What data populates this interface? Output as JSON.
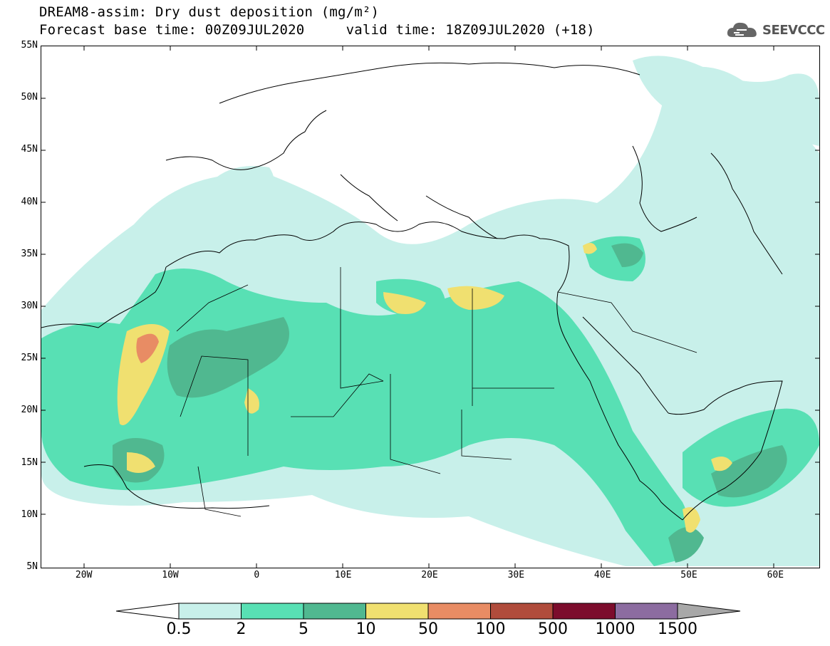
{
  "title": {
    "line1": "DREAM8-assim: Dry dust deposition (mg/m²)",
    "line2": "Forecast base time: 00Z09JUL2020     valid time: 18Z09JUL2020 (+18)"
  },
  "logo": {
    "text": "SEEVCCC",
    "icon": "cloud-icon"
  },
  "map": {
    "lon_range": [
      -25,
      65
    ],
    "lat_range": [
      5,
      55
    ],
    "y_ticks": [
      "55N",
      "50N",
      "45N",
      "40N",
      "35N",
      "30N",
      "25N",
      "20N",
      "15N",
      "10N",
      "5N"
    ],
    "x_ticks": [
      "20W",
      "10W",
      "0",
      "10E",
      "20E",
      "30E",
      "40E",
      "50E",
      "60E"
    ]
  },
  "legend": {
    "labels": [
      "0.5",
      "2",
      "5",
      "10",
      "50",
      "100",
      "500",
      "1000",
      "1500"
    ],
    "colors": [
      "#c8f0ea",
      "#58e0b4",
      "#50b890",
      "#f0e070",
      "#e88c64",
      "#b04c3c",
      "#7c0c2c",
      "#8c6ca0"
    ],
    "under_color": "#ffffff",
    "over_color": "#a8a8a8"
  }
}
